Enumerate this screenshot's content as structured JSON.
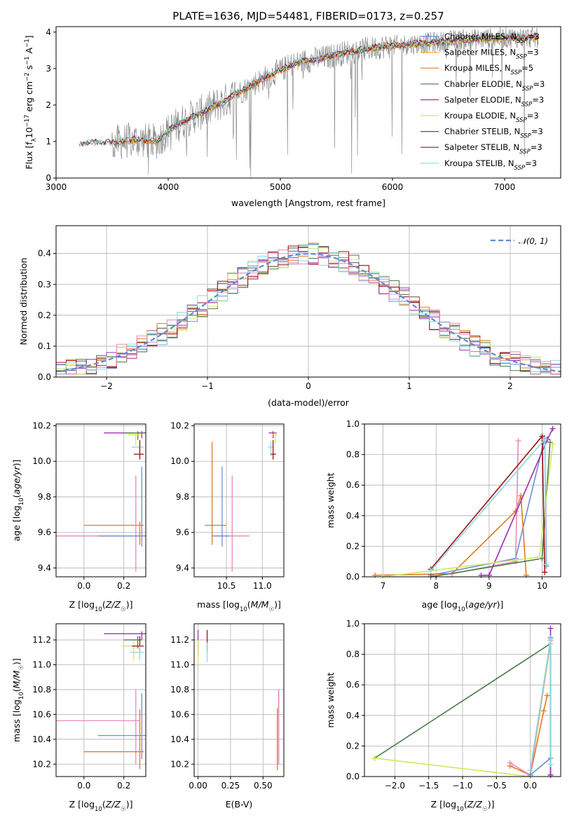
{
  "colors": {
    "chabrier_miles": "#6a8fd8",
    "salpeter_miles": "#f5a623",
    "kroupa_miles": "#e07a20",
    "chabrier_elodie": "#4a7d4a",
    "salpeter_elodie": "#9b30b0",
    "kroupa_elodie": "#cfe860",
    "chabrier_stelib": "#555555",
    "salpeter_stelib": "#a01010",
    "kroupa_stelib": "#8fd8e0",
    "gaussian": "#5b8ad6",
    "pink": "#e889b8",
    "observed": "#808080"
  },
  "chart_data": [
    {
      "type": "line",
      "title": "PLATE=1636, MJD=54481, FIBERID=0173, z=0.257",
      "xlabel": "wavelength [Angstrom, rest frame]",
      "ylabel": "Flux [f_λ 10^-17 erg cm^-2 s^-1 A^-1]",
      "xlim": [
        3000,
        7500
      ],
      "ylim": [
        0,
        4.15
      ],
      "xticks": [
        "3000",
        "4000",
        "5000",
        "6000",
        "7000"
      ],
      "yticks": [
        "0",
        "1",
        "2",
        "3",
        "4"
      ],
      "legend_position": "upper right",
      "legend": [
        "Chabrier MILES, N_SSP=3",
        "Salpeter MILES, N_SSP=3",
        "Kroupa MILES, N_SSP=5",
        "Chabrier ELODIE, N_SSP=3",
        "Salpeter ELODIE, N_SSP=3",
        "Kroupa ELODIE, N_SSP=3",
        "Chabrier STELIB, N_SSP=3",
        "Salpeter STELIB, N_SSP=3",
        "Kroupa STELIB, N_SSP=3"
      ],
      "continuum": {
        "x": [
          3200,
          3300,
          3400,
          3500,
          3600,
          3700,
          3800,
          3900,
          4000,
          4100,
          4200,
          4300,
          4400,
          4500,
          4600,
          4700,
          4800,
          4900,
          5000,
          5100,
          5200,
          5300,
          5400,
          5500,
          5600,
          5700,
          5800,
          5900,
          6000,
          6100,
          6200,
          6300,
          6400,
          6500,
          6600,
          6700,
          6800,
          6900,
          7000,
          7100,
          7200,
          7300
        ],
        "y": [
          0.9,
          0.95,
          0.97,
          0.95,
          1.0,
          1.05,
          1.02,
          1.0,
          1.3,
          1.5,
          1.65,
          1.8,
          1.95,
          2.1,
          2.3,
          2.45,
          2.65,
          2.8,
          2.95,
          3.1,
          3.2,
          3.25,
          3.3,
          3.38,
          3.45,
          3.5,
          3.55,
          3.6,
          3.62,
          3.65,
          3.68,
          3.7,
          3.72,
          3.75,
          3.78,
          3.8,
          3.82,
          3.83,
          3.85,
          3.85,
          3.85,
          3.85
        ]
      }
    },
    {
      "type": "line",
      "xlabel": "(data-model)/error",
      "ylabel": "Normed distribution",
      "xlim": [
        -2.5,
        2.5
      ],
      "ylim": [
        0,
        0.49
      ],
      "xticks": [
        "−2",
        "−1",
        "0",
        "1",
        "2"
      ],
      "yticks": [
        "0.0",
        "0.1",
        "0.2",
        "0.3",
        "0.4"
      ],
      "legend_position": "upper right",
      "series": [
        {
          "name": "𝒩(0, 1)",
          "mu": 0,
          "sigma": 1
        }
      ],
      "histogram_bin_width": 0.1
    },
    {
      "type": "scatter",
      "xlabel": "Z [log10(Z/Z☉)]",
      "ylabel": "age [log10(age/yr)]",
      "xlim": [
        -0.14,
        0.31
      ],
      "ylim": [
        9.35,
        10.21
      ],
      "xticks": [
        "0.0",
        "0.2"
      ],
      "yticks": [
        "9.4",
        "9.6",
        "9.8",
        "10.0",
        "10.2"
      ],
      "points": [
        {
          "x": 0.29,
          "y": 10.16,
          "xerr": [
            0.19,
            0.02
          ],
          "yerr": [
            0.03,
            0.01
          ],
          "c": "salpeter_elodie"
        },
        {
          "x": 0.27,
          "y": 10.16,
          "xerr": [
            0.07,
            0.02
          ],
          "yerr": [
            0.04,
            0.01
          ],
          "c": "chabrier_elodie"
        },
        {
          "x": 0.26,
          "y": 10.15,
          "xerr": [
            0.04,
            0.03
          ],
          "yerr": [
            0.06,
            0.01
          ],
          "c": "kroupa_elodie"
        },
        {
          "x": 0.28,
          "y": 10.08,
          "xerr": [
            0.04,
            0.02
          ],
          "yerr": [
            0.06,
            0.03
          ],
          "c": "kroupa_stelib"
        },
        {
          "x": 0.28,
          "y": 10.04,
          "xerr": [
            0.03,
            0.02
          ],
          "yerr": [
            0.03,
            0.08
          ],
          "c": "salpeter_stelib"
        },
        {
          "x": 0.28,
          "y": 9.64,
          "xerr": [
            0.28,
            0.02
          ],
          "yerr": [
            0.11,
            0.02
          ],
          "c": "kroupa_miles"
        },
        {
          "x": 0.26,
          "y": 9.58,
          "xerr": [
            0.4,
            0.02
          ],
          "yerr": [
            0.2,
            0.34
          ],
          "c": "pink"
        },
        {
          "x": 0.29,
          "y": 9.58,
          "xerr": [
            0.22,
            0.02
          ],
          "yerr": [
            0.06,
            0.39
          ],
          "c": "chabrier_miles"
        }
      ]
    },
    {
      "type": "scatter",
      "xlabel": "mass [log10(M/M☉)]",
      "ylabel": "",
      "xlim": [
        10.05,
        11.3
      ],
      "ylim": [
        9.35,
        10.21
      ],
      "xticks": [
        "10.5",
        "11.0"
      ],
      "yticks": [
        "9.4",
        "9.6",
        "9.8",
        "10.0",
        "10.2"
      ],
      "points": [
        {
          "x": 11.15,
          "y": 10.16,
          "xerr": [
            0.06,
            0.05
          ],
          "yerr": [
            0.03,
            0.01
          ],
          "c": "salpeter_elodie"
        },
        {
          "x": 11.18,
          "y": 10.15,
          "xerr": [
            0.05,
            0.03
          ],
          "yerr": [
            0.05,
            0.01
          ],
          "c": "kroupa_elodie"
        },
        {
          "x": 11.12,
          "y": 10.08,
          "xerr": [
            0.04,
            0.03
          ],
          "yerr": [
            0.05,
            0.03
          ],
          "c": "kroupa_stelib"
        },
        {
          "x": 11.15,
          "y": 10.04,
          "xerr": [
            0.03,
            0.04
          ],
          "yerr": [
            0.03,
            0.08
          ],
          "c": "salpeter_stelib"
        },
        {
          "x": 10.3,
          "y": 9.64,
          "xerr": [
            0.1,
            0.2
          ],
          "yerr": [
            0.11,
            0.47
          ],
          "c": "kroupa_miles"
        },
        {
          "x": 10.58,
          "y": 9.58,
          "xerr": [
            0.22,
            0.24
          ],
          "yerr": [
            0.2,
            0.34
          ],
          "c": "pink"
        },
        {
          "x": 10.44,
          "y": 9.58,
          "xerr": [
            0.14,
            0.1
          ],
          "yerr": [
            0.06,
            0.39
          ],
          "c": "chabrier_miles"
        }
      ]
    },
    {
      "type": "line",
      "xlabel": "age [log10(age/yr)]",
      "ylabel": "mass weight",
      "xlim": [
        6.65,
        10.35
      ],
      "ylim": [
        0,
        1
      ],
      "xticks": [
        "7",
        "8",
        "9",
        "10"
      ],
      "yticks": [
        "0.0",
        "0.2",
        "0.4",
        "0.6",
        "0.8",
        "1.0"
      ],
      "series": [
        {
          "c": "chabrier_miles",
          "x": [
            7.9,
            9.5,
            10.05,
            10.08
          ],
          "y": [
            0.01,
            0.12,
            0.91,
            0.07
          ]
        },
        {
          "c": "kroupa_miles",
          "x": [
            6.85,
            8.3,
            9.5,
            9.6,
            9.7
          ],
          "y": [
            0.01,
            0.02,
            0.43,
            0.53,
            0.01
          ]
        },
        {
          "c": "pink",
          "x": [
            8.3,
            9.5,
            9.55
          ],
          "y": [
            0.02,
            0.1,
            0.89
          ]
        },
        {
          "c": "salpeter_elodie",
          "x": [
            8.85,
            9.0,
            10.1,
            10.2
          ],
          "y": [
            0.01,
            0.01,
            0.9,
            0.97
          ]
        },
        {
          "c": "chabrier_elodie",
          "x": [
            7.9,
            10.0,
            10.15
          ],
          "y": [
            0.0,
            0.12,
            0.88
          ]
        },
        {
          "c": "kroupa_elodie",
          "x": [
            7.0,
            9.95,
            10.2
          ],
          "y": [
            0.0,
            0.13,
            0.87
          ]
        },
        {
          "c": "salpeter_stelib",
          "x": [
            7.9,
            10.0,
            10.05
          ],
          "y": [
            0.05,
            0.92,
            0.03
          ]
        },
        {
          "c": "kroupa_stelib",
          "x": [
            7.9,
            10.05,
            10.07
          ],
          "y": [
            0.04,
            0.9,
            0.08
          ]
        }
      ]
    },
    {
      "type": "scatter",
      "xlabel": "Z [log10(Z/Z☉)]",
      "ylabel": "mass [log10(M/M☉)]",
      "xlim": [
        -0.14,
        0.31
      ],
      "ylim": [
        10.1,
        11.33
      ],
      "xticks": [
        "0.0",
        "0.2"
      ],
      "yticks": [
        "10.2",
        "10.4",
        "10.6",
        "10.8",
        "11.0",
        "11.2"
      ],
      "points": [
        {
          "x": 0.29,
          "y": 11.25,
          "xerr": [
            0.19,
            0.02
          ],
          "yerr": [
            0.05,
            0.02
          ],
          "c": "salpeter_elodie"
        },
        {
          "x": 0.27,
          "y": 11.2,
          "xerr": [
            0.07,
            0.02
          ],
          "yerr": [
            0.07,
            0.03
          ],
          "c": "chabrier_elodie"
        },
        {
          "x": 0.25,
          "y": 11.15,
          "xerr": [
            0.06,
            0.03
          ],
          "yerr": [
            0.12,
            0.04
          ],
          "c": "kroupa_elodie"
        },
        {
          "x": 0.28,
          "y": 11.15,
          "xerr": [
            0.04,
            0.02
          ],
          "yerr": [
            0.04,
            0.08
          ],
          "c": "salpeter_stelib"
        },
        {
          "x": 0.28,
          "y": 11.1,
          "xerr": [
            0.05,
            0.02
          ],
          "yerr": [
            0.06,
            0.05
          ],
          "c": "kroupa_stelib"
        },
        {
          "x": 0.26,
          "y": 10.55,
          "xerr": [
            0.4,
            0.02
          ],
          "yerr": [
            0.35,
            0.25
          ],
          "c": "pink"
        },
        {
          "x": 0.29,
          "y": 10.43,
          "xerr": [
            0.22,
            0.02
          ],
          "yerr": [
            0.19,
            0.34
          ],
          "c": "chabrier_miles"
        },
        {
          "x": 0.28,
          "y": 10.3,
          "xerr": [
            0.28,
            0.02
          ],
          "yerr": [
            0.14,
            0.34
          ],
          "c": "kroupa_miles"
        }
      ]
    },
    {
      "type": "scatter",
      "xlabel": "E(B-V)",
      "ylabel": "",
      "xlim": [
        -0.03,
        0.66
      ],
      "ylim": [
        10.1,
        11.33
      ],
      "xticks": [
        "0.00",
        "0.25",
        "0.50"
      ],
      "yticks": [
        "10.2",
        "10.4",
        "10.6",
        "10.8",
        "11.0",
        "11.2"
      ],
      "points": [
        {
          "x": 0.0,
          "y": 11.2,
          "xerr": [
            0,
            0
          ],
          "yerr": [
            0.12,
            0.08
          ],
          "c": "salpeter_elodie"
        },
        {
          "x": 0.0,
          "y": 11.1,
          "xerr": [
            0,
            0
          ],
          "yerr": [
            0.1,
            0.1
          ],
          "c": "kroupa_elodie"
        },
        {
          "x": 0.07,
          "y": 11.2,
          "xerr": [
            0,
            0
          ],
          "yerr": [
            0.1,
            0.08
          ],
          "c": "salpeter_stelib"
        },
        {
          "x": 0.07,
          "y": 11.1,
          "xerr": [
            0,
            0
          ],
          "yerr": [
            0.08,
            0.08
          ],
          "c": "kroupa_stelib"
        },
        {
          "x": 0.62,
          "y": 10.45,
          "xerr": [
            0,
            0
          ],
          "yerr": [
            0.25,
            0.35
          ],
          "c": "chabrier_miles"
        },
        {
          "x": 0.61,
          "y": 10.35,
          "xerr": [
            0,
            0
          ],
          "yerr": [
            0.2,
            0.3
          ],
          "c": "kroupa_miles"
        },
        {
          "x": 0.62,
          "y": 10.5,
          "xerr": [
            0,
            0
          ],
          "yerr": [
            0.3,
            0.3
          ],
          "c": "pink"
        }
      ]
    },
    {
      "type": "line",
      "xlabel": "Z [log10(Z/Z☉)]",
      "ylabel": "mass weight",
      "xlim": [
        -2.45,
        0.45
      ],
      "ylim": [
        0,
        1
      ],
      "xticks": [
        "−2.0",
        "−1.5",
        "−1.0",
        "−0.5",
        "0.0"
      ],
      "yticks": [
        "0.0",
        "0.2",
        "0.4",
        "0.6",
        "0.8",
        "1.0"
      ],
      "series": [
        {
          "c": "chabrier_elodie",
          "x": [
            -2.3,
            0.3,
            0.3
          ],
          "y": [
            0.12,
            0.87,
            0.01
          ]
        },
        {
          "c": "kroupa_elodie",
          "x": [
            -2.3,
            0.0,
            0.3
          ],
          "y": [
            0.12,
            0.0,
            0.87
          ]
        },
        {
          "c": "kroupa_miles",
          "x": [
            -0.3,
            0.0,
            0.2,
            0.25
          ],
          "y": [
            0.07,
            0.01,
            0.43,
            0.53
          ]
        },
        {
          "c": "pink",
          "x": [
            -0.3,
            0.0,
            0.3
          ],
          "y": [
            0.09,
            0.01,
            0.89
          ]
        },
        {
          "c": "salpeter_elodie",
          "x": [
            0.3,
            0.3,
            0.3
          ],
          "y": [
            0.01,
            0.01,
            0.97
          ]
        },
        {
          "c": "chabrier_miles",
          "x": [
            0.0,
            0.3,
            0.3
          ],
          "y": [
            0.01,
            0.12,
            0.91
          ]
        },
        {
          "c": "kroupa_stelib",
          "x": [
            0.0,
            0.3,
            0.3
          ],
          "y": [
            0.04,
            0.9,
            0.08
          ]
        }
      ]
    }
  ]
}
